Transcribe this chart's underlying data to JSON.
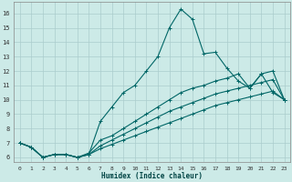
{
  "title": "",
  "xlabel": "Humidex (Indice chaleur)",
  "bg_color": "#cceae7",
  "grid_color": "#aacccc",
  "line_color": "#006666",
  "xlim": [
    -0.5,
    23.5
  ],
  "ylim": [
    5.7,
    16.8
  ],
  "yticks": [
    6,
    7,
    8,
    9,
    10,
    11,
    12,
    13,
    14,
    15,
    16
  ],
  "xticks": [
    0,
    1,
    2,
    3,
    4,
    5,
    6,
    7,
    8,
    9,
    10,
    11,
    12,
    13,
    14,
    15,
    16,
    17,
    18,
    19,
    20,
    21,
    22,
    23
  ],
  "series": [
    [
      7.0,
      6.7,
      6.0,
      6.2,
      6.2,
      6.0,
      6.2,
      8.5,
      9.5,
      10.5,
      11.0,
      12.0,
      13.0,
      15.0,
      16.3,
      15.6,
      13.2,
      13.3,
      12.2,
      11.3,
      10.8,
      11.8,
      10.5,
      10.0
    ],
    [
      7.0,
      6.7,
      6.0,
      6.2,
      6.2,
      6.0,
      6.3,
      7.2,
      7.5,
      8.0,
      8.5,
      9.0,
      9.5,
      10.0,
      10.5,
      10.8,
      11.0,
      11.3,
      11.5,
      11.8,
      10.8,
      11.8,
      12.0,
      10.0
    ],
    [
      7.0,
      6.7,
      6.0,
      6.2,
      6.2,
      6.0,
      6.2,
      6.8,
      7.2,
      7.6,
      8.0,
      8.4,
      8.8,
      9.2,
      9.5,
      9.8,
      10.1,
      10.4,
      10.6,
      10.8,
      11.0,
      11.2,
      11.4,
      10.0
    ],
    [
      7.0,
      6.7,
      6.0,
      6.2,
      6.2,
      6.0,
      6.2,
      6.6,
      6.9,
      7.2,
      7.5,
      7.8,
      8.1,
      8.4,
      8.7,
      9.0,
      9.3,
      9.6,
      9.8,
      10.0,
      10.2,
      10.4,
      10.6,
      10.0
    ]
  ]
}
